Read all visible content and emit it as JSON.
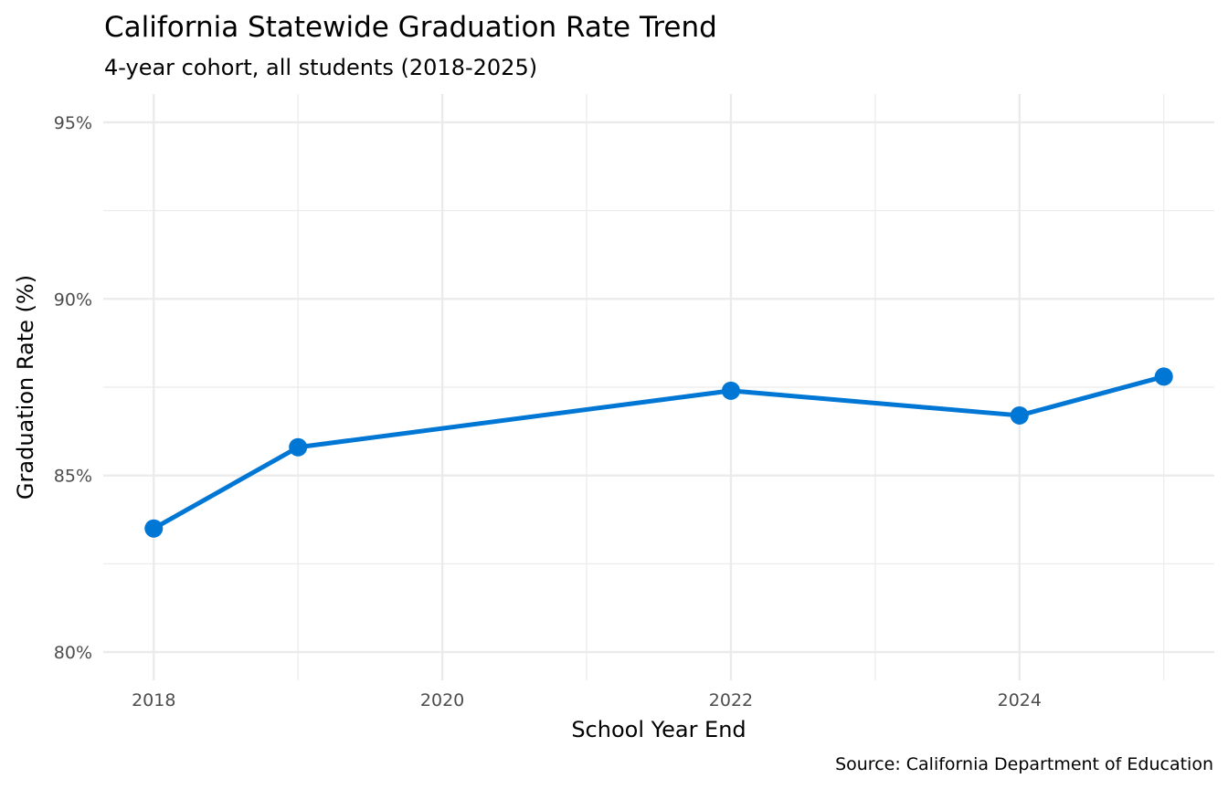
{
  "chart_data": {
    "type": "line",
    "title": "California Statewide Graduation Rate Trend",
    "subtitle": "4-year cohort, all students (2018-2025)",
    "xlabel": "School Year End",
    "ylabel": "Graduation Rate (%)",
    "caption": "Source: California Department of Education",
    "x": [
      2018,
      2019,
      2022,
      2024,
      2025
    ],
    "values": [
      83.5,
      85.8,
      87.4,
      86.7,
      87.8
    ],
    "xlim": [
      2017.65,
      2025.35
    ],
    "ylim": [
      79.2,
      95.8
    ],
    "x_ticks": [
      2018,
      2020,
      2022,
      2024
    ],
    "x_tick_labels": [
      "2018",
      "2020",
      "2022",
      "2024"
    ],
    "y_ticks": [
      80,
      85,
      90,
      95
    ],
    "y_tick_labels": [
      "80%",
      "85%",
      "90%",
      "95%"
    ],
    "grid": true,
    "line_color": "#0077D4",
    "grid_color": "#EBEBEB"
  }
}
